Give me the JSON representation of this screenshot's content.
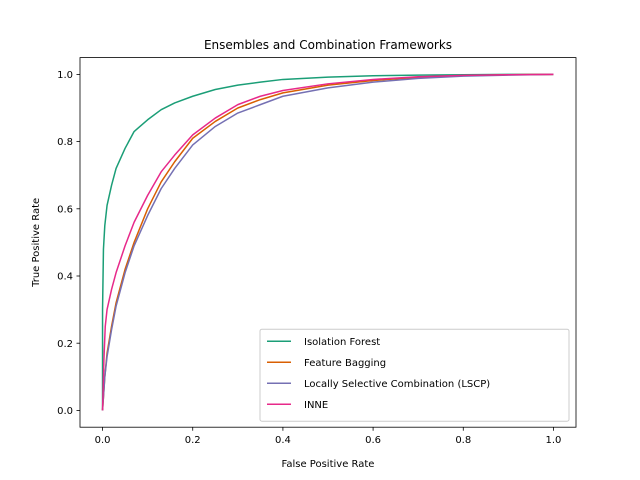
{
  "chart_data": {
    "type": "line",
    "title": "Ensembles and Combination Frameworks",
    "xlabel": "False Positive Rate",
    "ylabel": "True Positive Rate",
    "xlim": [
      -0.05,
      1.05
    ],
    "ylim": [
      -0.05,
      1.05
    ],
    "xticks": [
      "0.0",
      "0.2",
      "0.4",
      "0.6",
      "0.8",
      "1.0"
    ],
    "yticks": [
      "0.0",
      "0.2",
      "0.4",
      "0.6",
      "0.8",
      "1.0"
    ],
    "grid": false,
    "legend_position": "lower-right",
    "series": [
      {
        "name": "Isolation Forest",
        "color": "#1b9e77",
        "x": [
          0.0,
          0.0,
          0.002,
          0.005,
          0.01,
          0.02,
          0.03,
          0.05,
          0.07,
          0.1,
          0.13,
          0.16,
          0.2,
          0.25,
          0.3,
          0.35,
          0.4,
          0.5,
          0.6,
          0.7,
          0.8,
          0.9,
          1.0
        ],
        "y": [
          0.0,
          0.3,
          0.48,
          0.55,
          0.61,
          0.67,
          0.72,
          0.78,
          0.83,
          0.865,
          0.895,
          0.915,
          0.935,
          0.955,
          0.968,
          0.977,
          0.985,
          0.992,
          0.996,
          0.998,
          0.999,
          1.0,
          1.0
        ]
      },
      {
        "name": "Feature Bagging",
        "color": "#d95f02",
        "x": [
          0.0,
          0.005,
          0.01,
          0.02,
          0.03,
          0.05,
          0.07,
          0.1,
          0.13,
          0.16,
          0.2,
          0.25,
          0.3,
          0.35,
          0.4,
          0.5,
          0.6,
          0.7,
          0.8,
          0.9,
          1.0
        ],
        "y": [
          0.0,
          0.1,
          0.17,
          0.25,
          0.32,
          0.42,
          0.5,
          0.6,
          0.68,
          0.74,
          0.81,
          0.86,
          0.9,
          0.925,
          0.945,
          0.968,
          0.982,
          0.991,
          0.996,
          0.999,
          1.0
        ]
      },
      {
        "name": "Locally Selective Combination (LSCP)",
        "color": "#7570b3",
        "x": [
          0.0,
          0.005,
          0.01,
          0.02,
          0.03,
          0.05,
          0.07,
          0.1,
          0.13,
          0.16,
          0.2,
          0.25,
          0.3,
          0.35,
          0.4,
          0.5,
          0.6,
          0.7,
          0.8,
          0.9,
          1.0
        ],
        "y": [
          0.0,
          0.1,
          0.16,
          0.24,
          0.31,
          0.41,
          0.49,
          0.58,
          0.66,
          0.72,
          0.79,
          0.845,
          0.885,
          0.91,
          0.935,
          0.96,
          0.977,
          0.988,
          0.995,
          0.998,
          1.0
        ]
      },
      {
        "name": "INNE",
        "color": "#e7298a",
        "x": [
          0.0,
          0.003,
          0.006,
          0.01,
          0.02,
          0.03,
          0.05,
          0.07,
          0.1,
          0.13,
          0.16,
          0.2,
          0.25,
          0.3,
          0.35,
          0.4,
          0.5,
          0.6,
          0.7,
          0.8,
          0.9,
          1.0
        ],
        "y": [
          0.0,
          0.15,
          0.25,
          0.3,
          0.36,
          0.41,
          0.49,
          0.56,
          0.64,
          0.71,
          0.76,
          0.82,
          0.87,
          0.91,
          0.935,
          0.952,
          0.972,
          0.985,
          0.993,
          0.997,
          0.999,
          1.0
        ]
      }
    ]
  }
}
